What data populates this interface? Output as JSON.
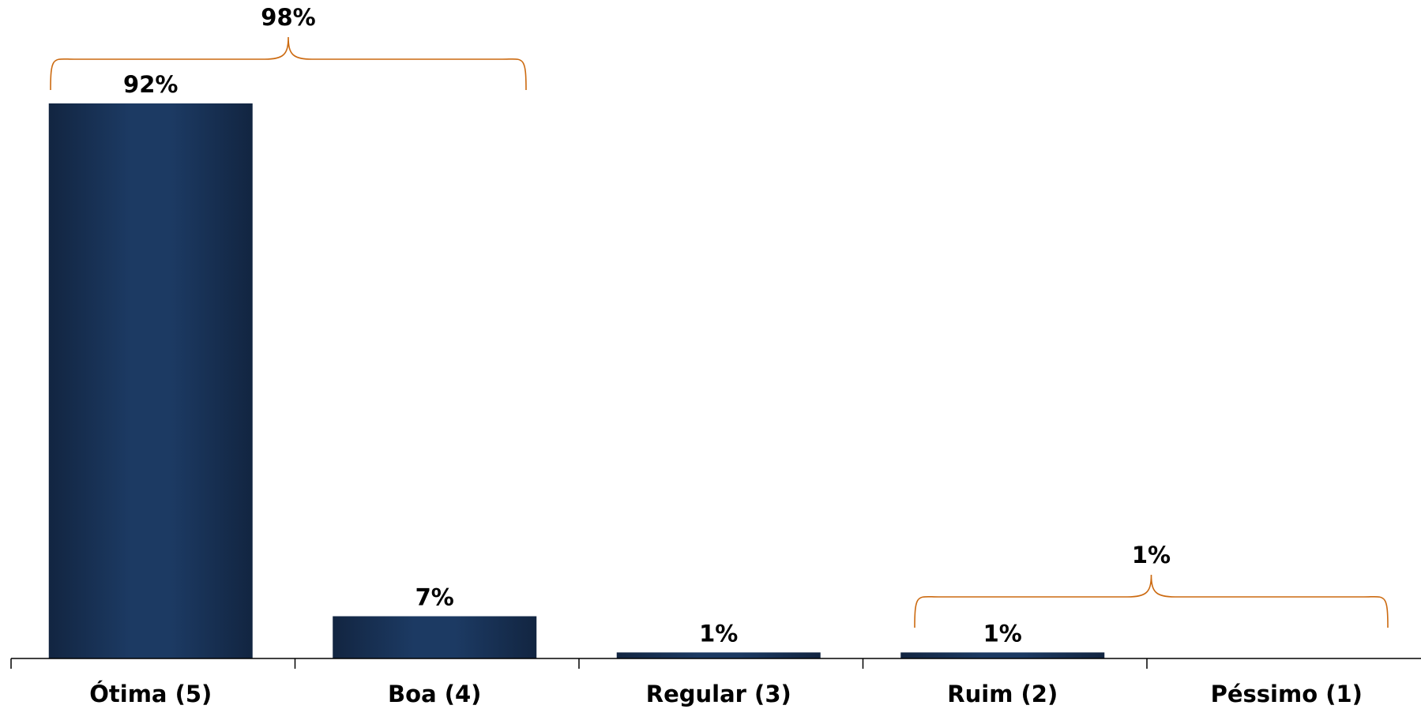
{
  "chart_data": {
    "type": "bar",
    "categories": [
      "Ótima (5)",
      "Boa (4)",
      "Regular (3)",
      "Ruim (2)",
      "Péssimo (1)"
    ],
    "values": [
      92,
      7,
      1,
      1,
      0
    ],
    "data_labels": [
      "92%",
      "7%",
      "1%",
      "1%",
      ""
    ],
    "ylim": [
      0,
      100
    ],
    "grid": false,
    "legend": "none",
    "title": "",
    "xlabel": "",
    "ylabel": "",
    "brackets": [
      {
        "label": "98%",
        "from_category": 0,
        "to_category": 1
      },
      {
        "label": "1%",
        "from_category": 3,
        "to_category": 4
      }
    ],
    "colors": {
      "bar_dark": "#122541",
      "bar_light": "#1c3a63",
      "bracket": "#cc6a10",
      "axis": "#000000",
      "text": "#000000"
    }
  }
}
